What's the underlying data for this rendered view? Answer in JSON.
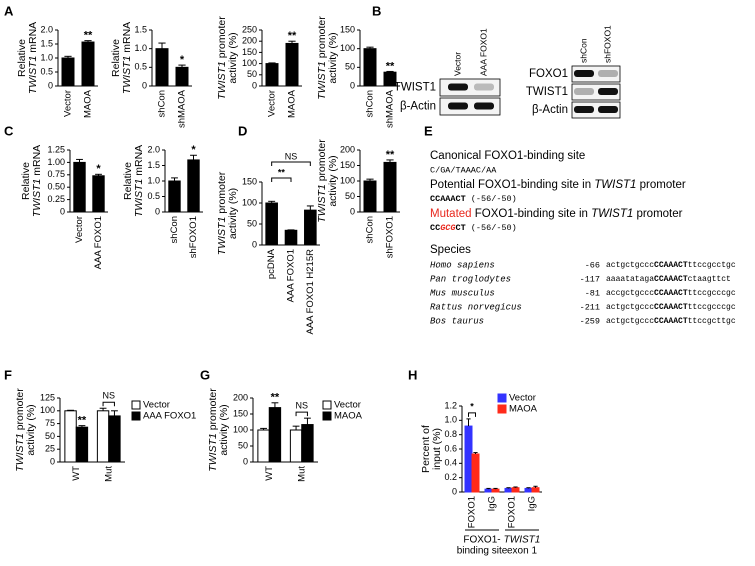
{
  "panel_labels": [
    "A",
    "B",
    "C",
    "D",
    "E",
    "F",
    "G",
    "H"
  ],
  "chart_data": [
    {
      "type": "bar",
      "ylabel": [
        [
          "Relative"
        ],
        [
          "TWIST1",
          " mRNA"
        ]
      ],
      "categories": [
        "Vector",
        "MAOA"
      ],
      "values": [
        1.0,
        1.57
      ],
      "errors": [
        0.06,
        0.05
      ],
      "significance": [
        null,
        "**"
      ],
      "color": "#000000",
      "ylim": [
        0,
        2
      ],
      "yticks": [
        0,
        0.5,
        {
          "value": 1,
          "label": "1.0"
        },
        1.5,
        {
          "value": 2,
          "label": "2.0"
        }
      ]
    },
    {
      "type": "bar",
      "ylabel": [
        [
          "Relative"
        ],
        [
          "TWIST1",
          " mRNA"
        ]
      ],
      "categories": [
        "shCon",
        "shMAOA"
      ],
      "values": [
        1.0,
        0.5
      ],
      "errors": [
        0.15,
        0.06
      ],
      "significance": [
        null,
        "*"
      ],
      "color": "#000000",
      "ylim": [
        0,
        1.5
      ],
      "yticks": [
        0,
        0.5,
        {
          "value": 1,
          "label": "1.0"
        },
        1.5
      ]
    },
    {
      "type": "bar",
      "ylabel": [
        [
          "TWIST1",
          " promoter"
        ],
        [
          "activity (%)"
        ]
      ],
      "categories": [
        "Vector",
        "MAOA"
      ],
      "values": [
        100,
        190
      ],
      "errors": [
        3,
        10
      ],
      "significance": [
        null,
        "**"
      ],
      "color": "#000000",
      "ylim": [
        0,
        250
      ],
      "yticks": [
        0,
        50,
        100,
        150,
        200,
        250
      ]
    },
    {
      "type": "bar",
      "ylabel": [
        [
          "TWIST1",
          " promoter"
        ],
        [
          "activity (%)"
        ]
      ],
      "categories": [
        "shCon",
        "shMAOA"
      ],
      "values": [
        100,
        37
      ],
      "errors": [
        4,
        2
      ],
      "significance": [
        null,
        "**"
      ],
      "color": "#000000",
      "ylim": [
        0,
        150
      ],
      "yticks": [
        0,
        50,
        100,
        150
      ]
    },
    {
      "type": "bar",
      "ylabel": [
        [
          "Relative"
        ],
        [
          "TWIST1",
          " mRNA"
        ]
      ],
      "categories": [
        "Vector",
        "AAA FOXO1"
      ],
      "values": [
        1.0,
        0.73
      ],
      "errors": [
        0.06,
        0.03
      ],
      "significance": [
        null,
        "*"
      ],
      "color": "#000000",
      "ylim": [
        0,
        1.25
      ],
      "yticks": [
        0,
        0.25,
        {
          "value": 0.5,
          "label": "0.50"
        },
        0.75,
        {
          "value": 1,
          "label": "1.00"
        },
        1.25
      ]
    },
    {
      "type": "bar",
      "ylabel": [
        [
          "Relative"
        ],
        [
          "TWIST1",
          " mRNA"
        ]
      ],
      "categories": [
        "shCon",
        "shFOXO1"
      ],
      "values": [
        1.0,
        1.68
      ],
      "errors": [
        0.1,
        0.15
      ],
      "significance": [
        null,
        "*"
      ],
      "color": "#000000",
      "ylim": [
        0,
        2
      ],
      "yticks": [
        0,
        0.5,
        {
          "value": 1,
          "label": "1.0"
        },
        1.5,
        {
          "value": 2,
          "label": "2.0"
        }
      ]
    },
    {
      "type": "bar",
      "ylabel": [
        [
          "TWIST1",
          " promoter"
        ],
        [
          "activity (%)"
        ]
      ],
      "categories": [
        "pcDNA",
        "AAA FOXO1",
        "AAA FOXO1 H215R"
      ],
      "values": [
        100,
        35,
        83
      ],
      "errors": [
        4,
        1,
        10
      ],
      "comparisons": [
        null,
        "**",
        "NS"
      ],
      "color": "#000000",
      "ylim": [
        0,
        150
      ],
      "yticks": [
        0,
        50,
        100,
        150
      ]
    },
    {
      "type": "bar",
      "ylabel": [
        [
          "TWIST1",
          " promoter"
        ],
        [
          "activity (%)"
        ]
      ],
      "categories": [
        "shCon",
        "shFOXO1"
      ],
      "values": [
        100,
        160
      ],
      "errors": [
        6,
        8
      ],
      "significance": [
        null,
        "**"
      ],
      "color": "#000000",
      "ylim": [
        0,
        200
      ],
      "yticks": [
        0,
        50,
        100,
        150,
        200
      ]
    },
    {
      "type": "grouped_bar",
      "ylabel": [
        [
          "TWIST1",
          " promoter"
        ],
        [
          "activity (%)"
        ]
      ],
      "categories": [
        "WT",
        "Mut"
      ],
      "series": [
        {
          "name": "Vector",
          "color": "#ffffff",
          "values": [
            100,
            100
          ],
          "errors": [
            1,
            5
          ],
          "significance": [
            null,
            null
          ]
        },
        {
          "name": "AAA FOXO1",
          "color": "#000000",
          "values": [
            68,
            90
          ],
          "errors": [
            3,
            10
          ],
          "significance": [
            "**",
            null
          ]
        }
      ],
      "bracket_labels": [
        null,
        "NS"
      ],
      "legend": true,
      "ylim": [
        0,
        125
      ],
      "yticks": [
        0,
        25,
        50,
        75,
        100,
        125
      ]
    },
    {
      "type": "grouped_bar",
      "ylabel": [
        [
          "TWIST1",
          " promoter"
        ],
        [
          "activity (%)"
        ]
      ],
      "categories": [
        "WT",
        "Mut"
      ],
      "series": [
        {
          "name": "Vector",
          "color": "#ffffff",
          "values": [
            100,
            100
          ],
          "errors": [
            5,
            12
          ],
          "significance": [
            null,
            null
          ]
        },
        {
          "name": "MAOA",
          "color": "#000000",
          "values": [
            170,
            117
          ],
          "errors": [
            15,
            20
          ],
          "significance": [
            "**",
            null
          ]
        }
      ],
      "bracket_labels": [
        null,
        "NS"
      ],
      "legend": true,
      "ylim": [
        0,
        200
      ],
      "yticks": [
        0,
        50,
        100,
        150,
        200
      ]
    },
    {
      "type": "grouped_bar",
      "ylabel": [
        [
          "Percent of"
        ],
        [
          "input (%)"
        ]
      ],
      "categories": [
        "FOXO1",
        "IgG",
        "FOXO1",
        "IgG"
      ],
      "series": [
        {
          "name": "Vector",
          "color": "#3333ff",
          "values": [
            0.92,
            0.04,
            0.05,
            0.05
          ],
          "errors": [
            0.1,
            0.01,
            0.01,
            0.01
          ],
          "significance": [
            null,
            null,
            null,
            null
          ]
        },
        {
          "name": "MAOA",
          "color": "#ff2a1a",
          "values": [
            0.53,
            0.04,
            0.06,
            0.06
          ],
          "errors": [
            0.02,
            0.01,
            0.01,
            0.02
          ],
          "significance": [
            null,
            null,
            null,
            null
          ]
        }
      ],
      "bracket_labels": [
        "*",
        null,
        null,
        null
      ],
      "groups": [
        {
          "label": [
            "FOXO1-",
            "binding site"
          ]
        },
        {
          "label": [
            "TWIST1",
            "exon 1"
          ]
        }
      ],
      "legend": true,
      "ylim": [
        0,
        1.2
      ],
      "yticks": [
        0,
        0.2,
        0.4,
        0.6,
        0.8,
        {
          "value": 1,
          "label": "1.0"
        },
        1.2
      ]
    }
  ],
  "blots": [
    {
      "lanes": [
        "Vector",
        "AAA FOXO1"
      ],
      "rows": [
        "TWIST1",
        "β-Actin"
      ]
    },
    {
      "lanes": [
        "shCon",
        "shFOXO1"
      ],
      "rows": [
        "FOXO1",
        "TWIST1",
        "β-Actin"
      ]
    }
  ],
  "sequence_panel": {
    "canonical_title": "Canonical FOXO1-binding site",
    "canonical_seq": "C/GA/TAAAC/AA",
    "potential_title": [
      "Potential FOXO1-binding site in ",
      "TWIST1",
      " promoter"
    ],
    "potential_seq": [
      "CCAAACT",
      " (-56/-50)"
    ],
    "mutated_title": [
      "Mutated",
      " FOXO1-binding site in ",
      "TWIST1",
      " promoter"
    ],
    "mutated_seq": [
      "CC",
      "GCG",
      "CT",
      " (-56/-50)"
    ],
    "species_title": "Species",
    "species": [
      {
        "name": "Homo sapiens",
        "position": "-66",
        "seq": [
          "actgctgccc",
          "CCAAACT",
          "ttccgcctgc"
        ]
      },
      {
        "name": "Pan troglodytes",
        "position": "-117",
        "seq": [
          "aaaatataga",
          "CCAAACT",
          "ctaagttct"
        ]
      },
      {
        "name": "Mus musculus",
        "position": "-81",
        "seq": [
          "accgctgccc",
          "CCAAACT",
          "ttccgcccgc"
        ]
      },
      {
        "name": "Rattus norvegicus",
        "position": "-211",
        "seq": [
          "actgctgccc",
          "CCAAACT",
          "ttccgcccgc"
        ]
      },
      {
        "name": "Bos taurus",
        "position": "-259",
        "seq": [
          "actgctgccc",
          "CCAAACT",
          "ttccgcttgc"
        ]
      }
    ]
  }
}
